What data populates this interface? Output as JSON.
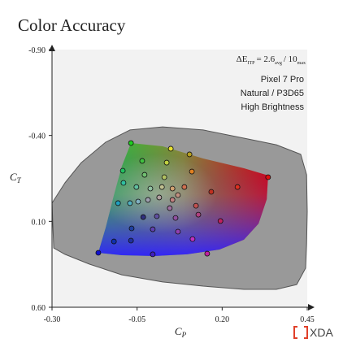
{
  "chart_data": {
    "type": "scatter",
    "title": "Color Accuracy",
    "x_label": {
      "main": "C",
      "sub": "P"
    },
    "y_label": {
      "main": "C",
      "sub": "T"
    },
    "annotation": {
      "symbol": "ΔE",
      "symbol_sub": "ITP",
      "avg": "= 2.6",
      "avg_sub": "avg",
      "max": "/ 10",
      "max_sub": "max"
    },
    "device": [
      "Pixel 7 Pro",
      "Natural / P3D65",
      "High Brightness"
    ],
    "brand": "XDA",
    "xlim": [
      -0.3,
      0.45
    ],
    "ylim": [
      -0.9,
      0.6
    ],
    "y_inverted": true,
    "xticks": [
      {
        "value": -0.3,
        "label": "-0.30"
      },
      -0.05,
      {
        "value": 0.2,
        "label": "0.20"
      },
      0.45
    ],
    "yticks": [
      {
        "value": -0.9,
        "label": "-0.90"
      },
      {
        "value": -0.4,
        "label": "-0.40"
      },
      {
        "value": 0.1,
        "label": "0.10"
      },
      {
        "value": 0.6,
        "label": "0.60"
      }
    ],
    "gamut_boundary": {
      "color": "#999999",
      "x": [
        -0.3,
        -0.262,
        -0.214,
        -0.142,
        -0.071,
        0.025,
        0.144,
        0.264,
        0.359,
        0.431,
        0.448,
        0.45,
        0.448,
        0.445,
        0.419,
        0.359,
        0.264,
        0.144,
        0.025,
        -0.095,
        -0.19,
        -0.262,
        -0.295
      ],
      "y": [
        -0.006,
        -0.124,
        -0.242,
        -0.361,
        -0.432,
        -0.45,
        -0.432,
        -0.384,
        -0.346,
        -0.29,
        -0.171,
        0.042,
        0.231,
        0.373,
        0.468,
        0.496,
        0.496,
        0.477,
        0.453,
        0.411,
        0.349,
        0.292,
        0.255
      ]
    },
    "target_gamut": {
      "x": [
        -0.068,
        0.025,
        0.144,
        0.264,
        0.335,
        0.331,
        0.307,
        0.264,
        0.192,
        0.097,
        0.001,
        -0.095,
        -0.164,
        -0.142,
        -0.118,
        -0.095
      ],
      "y": [
        -0.356,
        -0.337,
        -0.266,
        -0.209,
        -0.167,
        -0.029,
        0.113,
        0.207,
        0.264,
        0.292,
        0.302,
        0.297,
        0.283,
        0.136,
        -0.053,
        -0.219
      ]
    },
    "points": {
      "x": [
        -0.068,
        0.049,
        0.104,
        -0.035,
        0.037,
        -0.092,
        0.111,
        -0.028,
        0.03,
        -0.09,
        -0.052,
        -0.011,
        0.023,
        0.054,
        0.089,
        0.168,
        0.245,
        0.335,
        -0.106,
        -0.071,
        -0.047,
        -0.018,
        0.015,
        0.054,
        0.07,
        0.123,
        -0.032,
        0.008,
        0.063,
        0.13,
        0.195,
        -0.066,
        -0.004,
        0.07,
        -0.068,
        -0.118,
        0.113,
        -0.004,
        -0.164,
        0.156,
        0.046
      ],
      "y": [
        -0.356,
        -0.323,
        -0.29,
        -0.252,
        -0.242,
        -0.195,
        -0.19,
        -0.171,
        -0.157,
        -0.124,
        -0.1,
        -0.091,
        -0.1,
        -0.091,
        -0.1,
        -0.072,
        -0.1,
        -0.157,
        -0.006,
        -0.006,
        -0.015,
        -0.025,
        -0.039,
        -0.025,
        -0.053,
        0.009,
        0.075,
        0.07,
        0.08,
        0.061,
        0.098,
        0.141,
        0.146,
        0.16,
        0.212,
        0.217,
        0.203,
        0.292,
        0.283,
        0.288,
        0.023
      ],
      "colors": [
        "#1fd01f",
        "#e8e030",
        "#b8a020",
        "#40c040",
        "#c0d040",
        "#20c060",
        "#e08020",
        "#70c070",
        "#b0c060",
        "#30c0a0",
        "#60c0a0",
        "#90c0a0",
        "#c0c090",
        "#d0a070",
        "#d07050",
        "#c03020",
        "#e03020",
        "#e01010",
        "#20a0c0",
        "#50b0c0",
        "#80b0c0",
        "#a0a0b0",
        "#b0a0a0",
        "#c08080",
        "#c09080",
        "#c05050",
        "#303080",
        "#6050a0",
        "#9050a0",
        "#b04080",
        "#c02060",
        "#2040a0",
        "#6040b0",
        "#9040b0",
        "#2030a0",
        "#1030b0",
        "#c030c0",
        "#4020c0",
        "#1010d0",
        "#c020a0",
        "#a070a0"
      ]
    }
  }
}
